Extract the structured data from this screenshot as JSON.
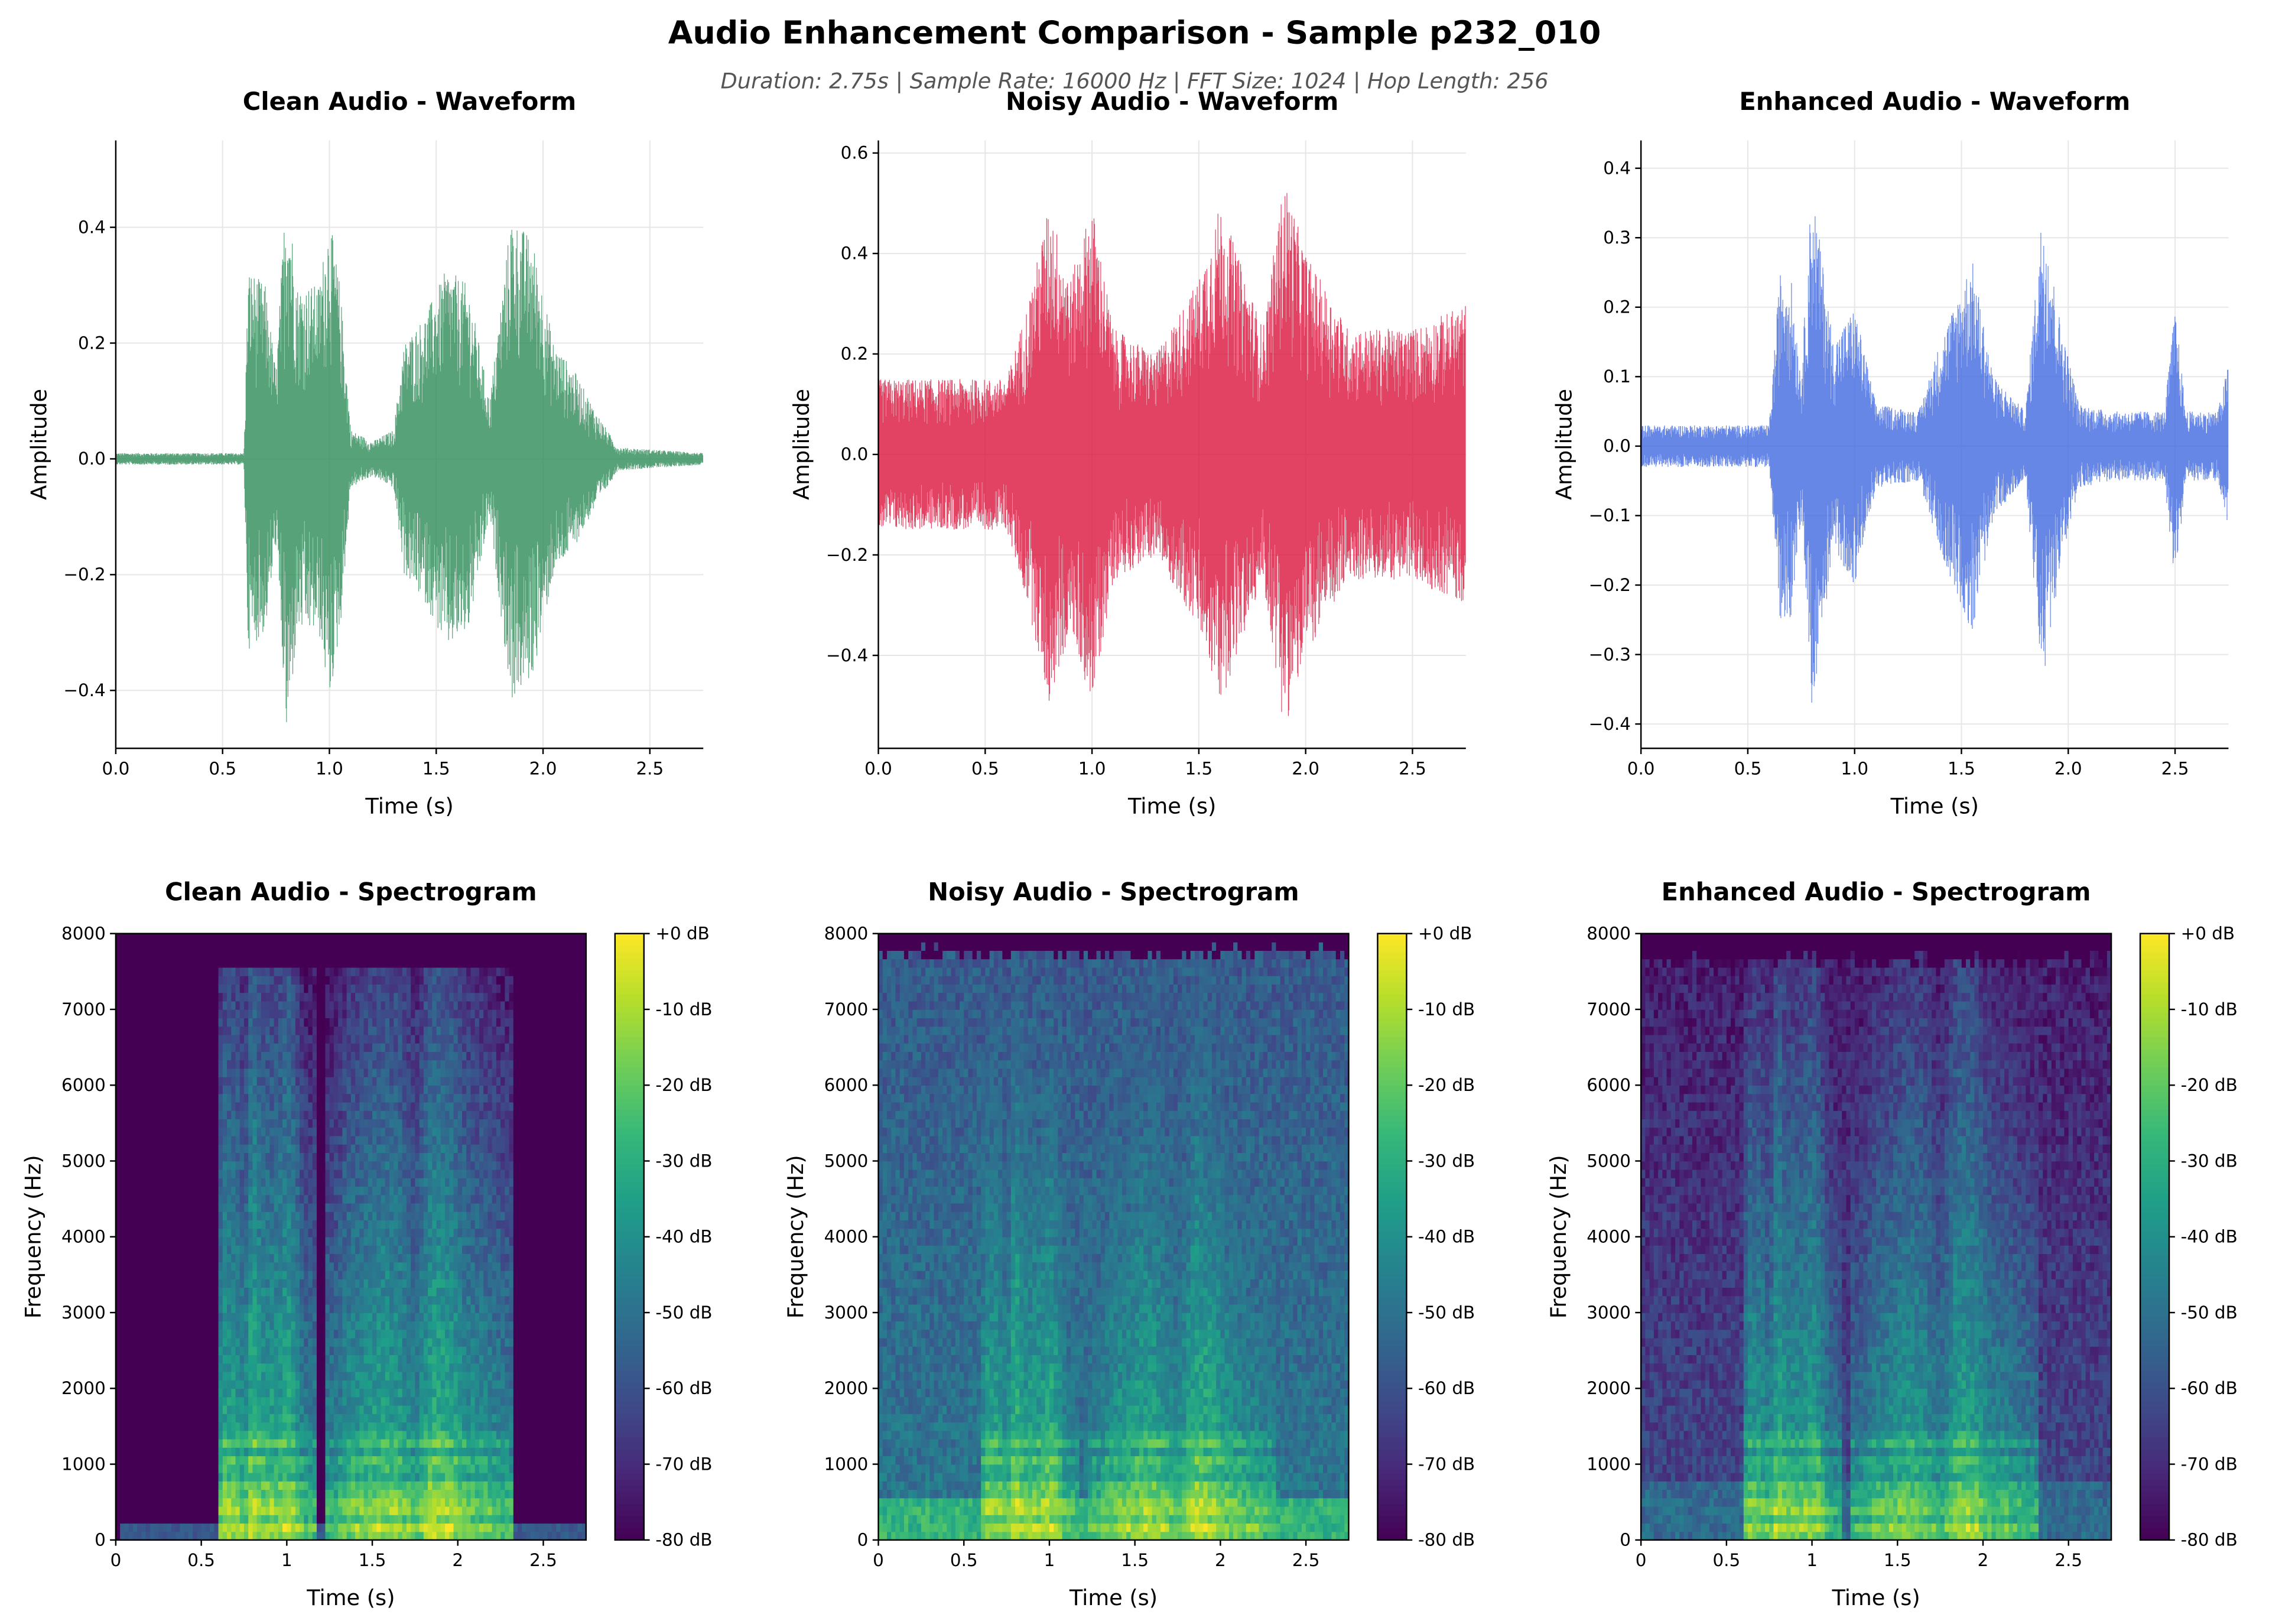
{
  "figure": {
    "title": "Audio Enhancement Comparison - Sample p232_010",
    "subtitle": "Duration: 2.75s | Sample Rate: 16000 Hz | FFT Size: 1024 | Hop Length: 256"
  },
  "chart_data": [
    {
      "type": "line",
      "title": "Clean Audio - Waveform",
      "xlabel": "Time (s)",
      "ylabel": "Amplitude",
      "xlim": [
        0,
        2.75
      ],
      "ylim": [
        -0.5,
        0.55
      ],
      "grid": true,
      "color": "#2e8b57",
      "xticks": [
        "0.0",
        "0.5",
        "1.0",
        "1.5",
        "2.0",
        "2.5"
      ],
      "yticks": [
        "−0.4",
        "−0.2",
        "0.0",
        "0.2",
        "0.4"
      ],
      "ytick_values": [
        -0.4,
        -0.2,
        0,
        0.2,
        0.4
      ],
      "envelope": {
        "t": [
          0,
          0.6,
          0.62,
          0.7,
          0.75,
          0.8,
          0.85,
          0.95,
          1.0,
          1.05,
          1.1,
          1.2,
          1.3,
          1.35,
          1.45,
          1.55,
          1.65,
          1.75,
          1.85,
          1.95,
          2.05,
          2.15,
          2.25,
          2.35,
          2.75
        ],
        "peak": [
          0.01,
          0.01,
          0.33,
          0.3,
          0.15,
          0.49,
          0.3,
          0.3,
          0.42,
          0.3,
          0.05,
          0.03,
          0.05,
          0.2,
          0.25,
          0.33,
          0.3,
          0.1,
          0.42,
          0.38,
          0.2,
          0.15,
          0.08,
          0.02,
          0.01
        ]
      }
    },
    {
      "type": "line",
      "title": "Noisy Audio - Waveform",
      "xlabel": "Time (s)",
      "ylabel": "Amplitude",
      "xlim": [
        0,
        2.75
      ],
      "ylim": [
        -0.585,
        0.625
      ],
      "grid": true,
      "color": "#dc143c",
      "xticks": [
        "0.0",
        "0.5",
        "1.0",
        "1.5",
        "2.0",
        "2.5"
      ],
      "yticks": [
        "−0.4",
        "−0.2",
        "0.0",
        "0.2",
        "0.4",
        "0.6"
      ],
      "ytick_values": [
        -0.4,
        -0.2,
        0,
        0.2,
        0.4,
        0.6
      ],
      "envelope": {
        "t": [
          0,
          0.6,
          0.7,
          0.8,
          0.9,
          1.0,
          1.1,
          1.3,
          1.5,
          1.6,
          1.8,
          1.9,
          2.0,
          2.2,
          2.5,
          2.75
        ],
        "peak": [
          0.15,
          0.15,
          0.3,
          0.5,
          0.35,
          0.5,
          0.25,
          0.2,
          0.35,
          0.5,
          0.25,
          0.55,
          0.4,
          0.25,
          0.25,
          0.3
        ]
      }
    },
    {
      "type": "line",
      "title": "Enhanced Audio - Waveform",
      "xlabel": "Time (s)",
      "ylabel": "Amplitude",
      "xlim": [
        0,
        2.75
      ],
      "ylim": [
        -0.435,
        0.44
      ],
      "grid": true,
      "color": "#4169e1",
      "xticks": [
        "0.0",
        "0.5",
        "1.0",
        "1.5",
        "2.0",
        "2.5"
      ],
      "yticks": [
        "−0.4",
        "−0.3",
        "−0.2",
        "−0.1",
        "0.0",
        "0.1",
        "0.2",
        "0.3",
        "0.4"
      ],
      "ytick_values": [
        -0.4,
        -0.3,
        -0.2,
        -0.1,
        0,
        0.1,
        0.2,
        0.3,
        0.4
      ],
      "envelope": {
        "t": [
          0,
          0.6,
          0.65,
          0.7,
          0.75,
          0.8,
          0.9,
          1.0,
          1.1,
          1.3,
          1.4,
          1.55,
          1.65,
          1.8,
          1.88,
          1.95,
          2.05,
          2.2,
          2.45,
          2.5,
          2.55,
          2.7,
          2.75
        ],
        "peak": [
          0.03,
          0.03,
          0.25,
          0.25,
          0.1,
          0.38,
          0.15,
          0.2,
          0.06,
          0.05,
          0.15,
          0.27,
          0.1,
          0.05,
          0.35,
          0.2,
          0.06,
          0.05,
          0.05,
          0.2,
          0.05,
          0.05,
          0.12
        ]
      }
    },
    {
      "type": "heatmap",
      "title": "Clean Audio - Spectrogram",
      "xlabel": "Time (s)",
      "ylabel": "Frequency (Hz)",
      "xlim": [
        0,
        2.75
      ],
      "ylim": [
        0,
        8000
      ],
      "colormap": "viridis",
      "clim_db": [
        -80,
        0
      ],
      "xticks": [
        "0",
        "0.5",
        "1",
        "1.5",
        "2",
        "2.5"
      ],
      "yticks": [
        "0",
        "1000",
        "2000",
        "3000",
        "4000",
        "5000",
        "6000",
        "7000",
        "8000"
      ],
      "colorbar_ticks": [
        "+0 dB",
        "-10 dB",
        "-20 dB",
        "-30 dB",
        "-40 dB",
        "-50 dB",
        "-60 dB",
        "-70 dB",
        "-80 dB"
      ],
      "noise_floor_db": -80,
      "max_speech_freq_hz": 7500
    },
    {
      "type": "heatmap",
      "title": "Noisy Audio - Spectrogram",
      "xlabel": "Time (s)",
      "ylabel": "Frequency (Hz)",
      "xlim": [
        0,
        2.75
      ],
      "ylim": [
        0,
        8000
      ],
      "colormap": "viridis",
      "clim_db": [
        -80,
        0
      ],
      "xticks": [
        "0",
        "0.5",
        "1",
        "1.5",
        "2",
        "2.5"
      ],
      "yticks": [
        "0",
        "1000",
        "2000",
        "3000",
        "4000",
        "5000",
        "6000",
        "7000",
        "8000"
      ],
      "colorbar_ticks": [
        "+0 dB",
        "-10 dB",
        "-20 dB",
        "-30 dB",
        "-40 dB",
        "-50 dB",
        "-60 dB",
        "-70 dB",
        "-80 dB"
      ],
      "noise_floor_db": -48,
      "max_speech_freq_hz": 7750
    },
    {
      "type": "heatmap",
      "title": "Enhanced Audio - Spectrogram",
      "xlabel": "Time (s)",
      "ylabel": "Frequency (Hz)",
      "xlim": [
        0,
        2.75
      ],
      "ylim": [
        0,
        8000
      ],
      "colormap": "viridis",
      "clim_db": [
        -80,
        0
      ],
      "xticks": [
        "0",
        "0.5",
        "1",
        "1.5",
        "2",
        "2.5"
      ],
      "yticks": [
        "0",
        "1000",
        "2000",
        "3000",
        "4000",
        "5000",
        "6000",
        "7000",
        "8000"
      ],
      "colorbar_ticks": [
        "+0 dB",
        "-10 dB",
        "-20 dB",
        "-30 dB",
        "-40 dB",
        "-50 dB",
        "-60 dB",
        "-70 dB",
        "-80 dB"
      ],
      "noise_floor_db": -62,
      "max_speech_freq_hz": 7650
    }
  ]
}
